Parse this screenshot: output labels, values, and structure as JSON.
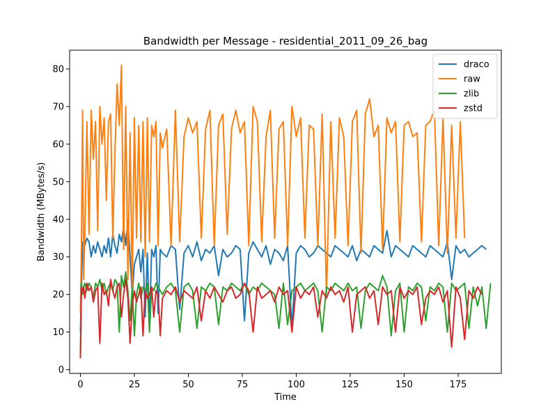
{
  "chart_data": {
    "type": "line",
    "title": "Bandwidth per Message - residential_2011_09_26_bag",
    "xlabel": "Time",
    "ylabel": "Bandwidth (MBytes/s)",
    "xlim": [
      -5,
      195
    ],
    "ylim": [
      -1,
      85
    ],
    "xticks": [
      0,
      25,
      50,
      75,
      100,
      125,
      150,
      175
    ],
    "yticks": [
      0,
      10,
      20,
      30,
      40,
      50,
      60,
      70,
      80
    ],
    "grid": false,
    "legend_position": "top-right",
    "series": [
      {
        "name": "draco",
        "color": "#1f77b4",
        "x": [
          0,
          0.5,
          1,
          1.5,
          2,
          3,
          4,
          5,
          6,
          7,
          8,
          9,
          10,
          11,
          12,
          13,
          14,
          15,
          16,
          17,
          18,
          19,
          20,
          21,
          22,
          23,
          24,
          25,
          26,
          27,
          28,
          29,
          30,
          31,
          32,
          33,
          34,
          35,
          36,
          37,
          38,
          40,
          42,
          44,
          46,
          48,
          50,
          52,
          54,
          56,
          58,
          60,
          62,
          64,
          66,
          68,
          70,
          72,
          74,
          76,
          78,
          80,
          82,
          84,
          86,
          88,
          90,
          92,
          94,
          96,
          98,
          100,
          102,
          104,
          106,
          108,
          110,
          112,
          114,
          116,
          118,
          120,
          122,
          124,
          126,
          128,
          130,
          132,
          134,
          136,
          138,
          140,
          142,
          144,
          146,
          148,
          150,
          152,
          154,
          156,
          158,
          160,
          162,
          164,
          166,
          168,
          170,
          172,
          174,
          176,
          178,
          180,
          182,
          184,
          186,
          188
        ],
        "values": [
          10,
          22,
          34,
          30,
          33,
          35,
          34,
          30,
          33,
          31,
          34,
          32,
          30,
          33,
          31,
          35,
          30,
          36,
          33,
          31,
          36,
          34,
          38,
          33,
          40,
          30,
          20,
          28,
          30,
          32,
          26,
          32,
          14,
          31,
          12,
          32,
          30,
          33,
          15,
          32,
          31,
          30,
          33,
          32,
          16,
          31,
          33,
          30,
          34,
          29,
          32,
          31,
          33,
          25,
          32,
          30,
          31,
          33,
          32,
          13,
          31,
          34,
          32,
          30,
          33,
          28,
          32,
          31,
          29,
          33,
          11,
          31,
          33,
          32,
          30,
          31,
          33,
          32,
          31,
          30,
          33,
          32,
          31,
          30,
          33,
          29,
          32,
          31,
          30,
          33,
          32,
          31,
          37,
          30,
          33,
          32,
          31,
          30,
          33,
          32,
          31,
          30,
          33,
          32,
          31,
          30,
          34,
          24,
          33,
          31,
          32,
          30,
          31,
          32,
          33,
          32
        ]
      },
      {
        "name": "raw",
        "color": "#ff7f0e",
        "x": [
          0,
          0.5,
          1,
          1.5,
          2,
          3,
          4,
          5,
          6,
          7,
          8,
          9,
          10,
          11,
          12,
          13,
          14,
          15,
          16,
          17,
          18,
          19,
          20,
          21,
          22,
          23,
          24,
          25,
          26,
          27,
          28,
          29,
          30,
          31,
          32,
          33,
          34,
          35,
          36,
          37,
          38,
          40,
          42,
          44,
          46,
          48,
          50,
          52,
          54,
          56,
          58,
          60,
          62,
          64,
          66,
          68,
          70,
          72,
          74,
          76,
          78,
          80,
          82,
          84,
          86,
          88,
          90,
          92,
          94,
          96,
          98,
          100,
          102,
          104,
          106,
          108,
          110,
          112,
          114,
          116,
          118,
          120,
          122,
          124,
          126,
          128,
          130,
          132,
          134,
          136,
          138,
          140,
          142,
          144,
          146,
          148,
          150,
          152,
          154,
          156,
          158,
          160,
          162,
          164,
          166,
          168,
          170,
          172,
          174,
          176,
          178
        ],
        "values": [
          15,
          34,
          69,
          24,
          35,
          66,
          36,
          69,
          56,
          66,
          37,
          70,
          60,
          67,
          45,
          66,
          68,
          35,
          58,
          76,
          65,
          81,
          32,
          70,
          24,
          63,
          20,
          67,
          35,
          65,
          34,
          66,
          30,
          67,
          34,
          65,
          62,
          66,
          33,
          63,
          59,
          64,
          33,
          69,
          34,
          62,
          67,
          63,
          66,
          35,
          64,
          69,
          33,
          65,
          68,
          36,
          64,
          69,
          63,
          66,
          33,
          70,
          66,
          34,
          62,
          69,
          35,
          64,
          66,
          33,
          70,
          62,
          67,
          35,
          65,
          64,
          33,
          68,
          20,
          66,
          35,
          67,
          62,
          33,
          66,
          69,
          31,
          68,
          72,
          62,
          65,
          32,
          67,
          63,
          66,
          34,
          65,
          66,
          62,
          63,
          34,
          65,
          66,
          69,
          33,
          67,
          31,
          65,
          35,
          66,
          35
        ]
      },
      {
        "name": "zlib",
        "color": "#2ca02c",
        "x": [
          0,
          0.5,
          1,
          1.5,
          2,
          3,
          4,
          5,
          6,
          7,
          8,
          9,
          10,
          11,
          12,
          13,
          14,
          15,
          16,
          17,
          18,
          19,
          20,
          21,
          22,
          23,
          24,
          25,
          26,
          27,
          28,
          29,
          30,
          31,
          32,
          33,
          34,
          35,
          36,
          37,
          38,
          40,
          42,
          44,
          46,
          48,
          50,
          52,
          54,
          56,
          58,
          60,
          62,
          64,
          66,
          68,
          70,
          72,
          74,
          76,
          78,
          80,
          82,
          84,
          86,
          88,
          90,
          92,
          94,
          96,
          98,
          100,
          102,
          104,
          106,
          108,
          110,
          112,
          114,
          116,
          118,
          120,
          122,
          124,
          126,
          128,
          130,
          132,
          134,
          136,
          138,
          140,
          142,
          144,
          146,
          148,
          150,
          152,
          154,
          156,
          158,
          160,
          162,
          164,
          166,
          168,
          170,
          172,
          174,
          176,
          178,
          180,
          182,
          184,
          186,
          188,
          190
        ],
        "values": [
          4,
          23,
          20,
          22,
          23,
          21,
          23,
          22,
          19,
          23,
          22,
          24,
          21,
          23,
          20,
          22,
          23,
          21,
          24,
          23,
          10,
          25,
          22,
          26,
          21,
          13,
          22,
          9,
          20,
          23,
          19,
          22,
          21,
          23,
          10,
          22,
          21,
          23,
          22,
          21,
          20,
          22,
          23,
          21,
          10,
          22,
          23,
          21,
          11,
          22,
          21,
          23,
          22,
          12,
          22,
          21,
          23,
          22,
          21,
          23,
          20,
          22,
          21,
          23,
          22,
          21,
          20,
          11,
          23,
          12,
          21,
          22,
          23,
          21,
          22,
          23,
          21,
          10,
          22,
          21,
          23,
          22,
          21,
          23,
          21,
          22,
          11,
          21,
          23,
          22,
          21,
          25,
          22,
          9,
          21,
          23,
          10,
          22,
          21,
          23,
          22,
          13,
          22,
          21,
          23,
          22,
          10,
          23,
          21,
          22,
          23,
          11,
          22,
          17,
          22,
          11,
          23
        ]
      },
      {
        "name": "zstd",
        "color": "#d62728",
        "x": [
          0,
          0.5,
          1,
          1.5,
          2,
          3,
          4,
          5,
          6,
          7,
          8,
          9,
          10,
          11,
          12,
          13,
          14,
          15,
          16,
          17,
          18,
          19,
          20,
          21,
          22,
          23,
          24,
          25,
          26,
          27,
          28,
          29,
          30,
          31,
          32,
          33,
          34,
          35,
          36,
          37,
          38,
          40,
          42,
          44,
          46,
          48,
          50,
          52,
          54,
          56,
          58,
          60,
          62,
          64,
          66,
          68,
          70,
          72,
          74,
          76,
          78,
          80,
          82,
          84,
          86,
          88,
          90,
          92,
          94,
          96,
          98,
          100,
          102,
          104,
          106,
          108,
          110,
          112,
          114,
          116,
          118,
          120,
          122,
          124,
          126,
          128,
          130,
          132,
          134,
          136,
          138,
          140,
          142,
          144,
          146,
          148,
          150,
          152,
          154,
          156,
          158,
          160,
          162,
          164,
          166,
          168,
          170,
          172,
          174,
          176,
          178,
          180,
          182,
          184,
          186
        ],
        "values": [
          3,
          22,
          21,
          22,
          19,
          23,
          21,
          22,
          18,
          21,
          22,
          7,
          23,
          20,
          21,
          17,
          24,
          21,
          19,
          22,
          23,
          14,
          20,
          24,
          19,
          7,
          17,
          21,
          18,
          20,
          22,
          9,
          21,
          19,
          20,
          22,
          14,
          21,
          20,
          9,
          19,
          21,
          20,
          22,
          18,
          21,
          20,
          19,
          22,
          13,
          21,
          19,
          22,
          20,
          18,
          21,
          22,
          19,
          20,
          23,
          21,
          10,
          22,
          19,
          20,
          21,
          18,
          22,
          20,
          21,
          10,
          22,
          19,
          21,
          20,
          22,
          14,
          21,
          19,
          22,
          20,
          21,
          18,
          22,
          10,
          20,
          21,
          22,
          19,
          21,
          12,
          22,
          20,
          21,
          10,
          22,
          19,
          21,
          20,
          22,
          12,
          19,
          21,
          20,
          22,
          18,
          21,
          6,
          22,
          19,
          8,
          21,
          19,
          22,
          20
        ]
      }
    ]
  }
}
